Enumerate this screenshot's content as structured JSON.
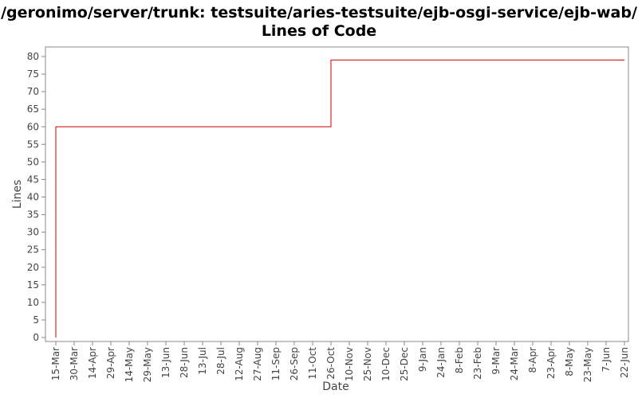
{
  "chart_data": {
    "type": "line",
    "title_line1": "/geronimo/server/trunk: testsuite/aries-testsuite/ejb-osgi-service/ejb-wab/",
    "title_line2": "Lines of Code",
    "xlabel": "Date",
    "ylabel": "Lines",
    "ylim": [
      0,
      80
    ],
    "y_ticks": [
      0,
      5,
      10,
      15,
      20,
      25,
      30,
      35,
      40,
      45,
      50,
      55,
      60,
      65,
      70,
      75,
      80
    ],
    "x_ticks": [
      "15-Mar",
      "30-Mar",
      "14-Apr",
      "29-Apr",
      "14-May",
      "29-May",
      "13-Jun",
      "28-Jun",
      "13-Jul",
      "28-Jul",
      "12-Aug",
      "27-Aug",
      "11-Sep",
      "26-Sep",
      "11-Oct",
      "26-Oct",
      "10-Nov",
      "25-Nov",
      "10-Dec",
      "25-Dec",
      "9-Jan",
      "24-Jan",
      "8-Feb",
      "23-Feb",
      "9-Mar",
      "24-Mar",
      "8-Apr",
      "23-Apr",
      "8-May",
      "23-May",
      "7-Jun",
      "22-Jun"
    ],
    "grid": false,
    "legend": "none",
    "series": [
      {
        "color": "#cc0000",
        "step": true,
        "points": [
          {
            "x": "15-Mar",
            "y": 0
          },
          {
            "x": "15-Mar",
            "y": 60
          },
          {
            "x": "26-Oct",
            "y": 60
          },
          {
            "x": "26-Oct",
            "y": 79
          },
          {
            "x": "22-Jun",
            "y": 79
          }
        ]
      }
    ]
  }
}
